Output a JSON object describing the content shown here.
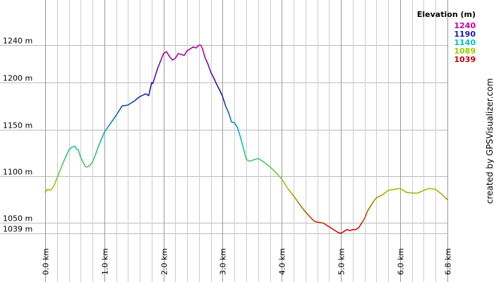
{
  "chart_data": {
    "type": "line",
    "xlabel": "",
    "ylabel": "",
    "x_unit": "km",
    "y_unit": "m",
    "xlim": [
      0,
      6.8
    ],
    "ylim": [
      1039,
      1240
    ],
    "x_ticks": [
      "0.0 km",
      "1.0 km",
      "2.0 km",
      "3.0 km",
      "4.0 km",
      "5.0 km",
      "6.0 km",
      "6.8 km"
    ],
    "x_tick_values": [
      0,
      1,
      2,
      3,
      4,
      5,
      6,
      6.8
    ],
    "y_ticks": [
      "1039 m",
      "1050 m",
      "1100 m",
      "1150 m",
      "1200 m",
      "1240 m"
    ],
    "y_tick_values": [
      1039,
      1050,
      1100,
      1150,
      1200,
      1240
    ],
    "grid": true,
    "legend_position": "top-right",
    "legend": {
      "title": "Elevation (m)",
      "entries": [
        {
          "label": "1240",
          "color": "#cc0099"
        },
        {
          "label": "1190",
          "color": "#1a1aa6"
        },
        {
          "label": "1140",
          "color": "#00c0c0"
        },
        {
          "label": "1089",
          "color": "#99cc00"
        },
        {
          "label": "1039",
          "color": "#cc0000"
        }
      ]
    },
    "color_scale": {
      "min": 1039,
      "max": 1240,
      "stops": [
        {
          "value": 1039,
          "color": "#cc0000"
        },
        {
          "value": 1089,
          "color": "#99cc00"
        },
        {
          "value": 1140,
          "color": "#00c0c0"
        },
        {
          "value": 1190,
          "color": "#1a1aa6"
        },
        {
          "value": 1240,
          "color": "#cc0099"
        }
      ]
    },
    "series": [
      {
        "x": [
          0.0,
          0.04,
          0.08,
          0.12,
          0.15,
          0.2,
          0.25,
          0.3,
          0.35,
          0.4,
          0.45,
          0.5,
          0.53,
          0.56,
          0.6,
          0.64,
          0.68,
          0.72,
          0.76,
          0.8,
          0.85,
          0.9,
          1.0,
          1.1,
          1.2,
          1.3,
          1.4,
          1.5,
          1.6,
          1.7,
          1.75,
          1.8,
          1.82,
          1.85,
          1.9,
          1.95,
          2.0,
          2.05,
          2.1,
          2.15,
          2.2,
          2.25,
          2.3,
          2.35,
          2.4,
          2.45,
          2.5,
          2.55,
          2.6,
          2.63,
          2.66,
          2.7,
          2.75,
          2.8,
          2.85,
          2.9,
          2.95,
          3.0,
          3.05,
          3.1,
          3.15,
          3.2,
          3.25,
          3.3,
          3.35,
          3.4,
          3.45,
          3.5,
          3.55,
          3.6,
          3.7,
          3.8,
          3.9,
          4.0,
          4.1,
          4.2,
          4.3,
          4.4,
          4.5,
          4.55,
          4.6,
          4.7,
          4.8,
          4.9,
          4.95,
          5.0,
          5.05,
          5.1,
          5.15,
          5.2,
          5.25,
          5.3,
          5.35,
          5.4,
          5.45,
          5.5,
          5.55,
          5.6,
          5.7,
          5.8,
          5.9,
          6.0,
          6.1,
          6.2,
          6.3,
          6.4,
          6.5,
          6.6,
          6.7,
          6.8
        ],
        "y": [
          1083,
          1086,
          1085,
          1087,
          1090,
          1098,
          1106,
          1114,
          1121,
          1128,
          1131,
          1132,
          1129,
          1128,
          1120,
          1115,
          1110,
          1110,
          1112,
          1115,
          1123,
          1132,
          1147,
          1156,
          1165,
          1175,
          1176,
          1180,
          1185,
          1188,
          1186,
          1200,
          1199,
          1205,
          1215,
          1223,
          1231,
          1233,
          1228,
          1224,
          1226,
          1231,
          1230,
          1229,
          1234,
          1236,
          1238,
          1237,
          1240,
          1240,
          1236,
          1227,
          1220,
          1211,
          1205,
          1198,
          1192,
          1185,
          1175,
          1168,
          1158,
          1157,
          1152,
          1142,
          1130,
          1118,
          1116,
          1117,
          1118,
          1119,
          1115,
          1110,
          1104,
          1097,
          1087,
          1079,
          1070,
          1062,
          1055,
          1052,
          1051,
          1050,
          1046,
          1042,
          1040,
          1039,
          1041,
          1043,
          1042,
          1043,
          1043,
          1045,
          1050,
          1055,
          1063,
          1068,
          1073,
          1077,
          1080,
          1085,
          1086,
          1087,
          1083,
          1082,
          1082,
          1085,
          1087,
          1086,
          1081,
          1075
        ]
      }
    ]
  },
  "credit": "created by GPSVisualizer.com"
}
